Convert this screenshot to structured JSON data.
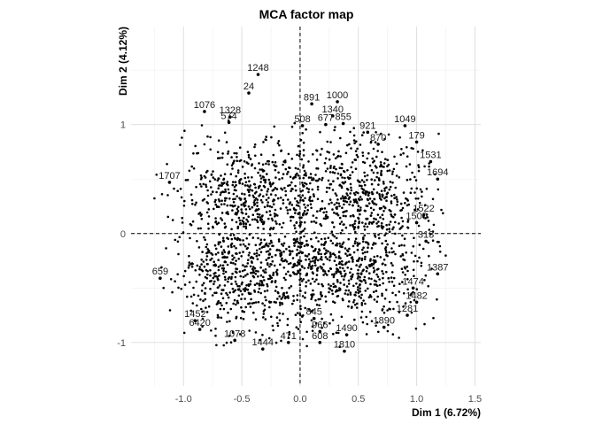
{
  "chart_data": {
    "type": "scatter",
    "title": "MCA factor map",
    "xlabel": "Dim 1 (6.72%)",
    "ylabel": "Dim 2 (4.12%)",
    "xlim": [
      -1.45,
      1.55
    ],
    "ylim": [
      -1.4,
      1.9
    ],
    "xticks": [
      -1.0,
      -0.5,
      0.0,
      0.5,
      1.0,
      1.5
    ],
    "xtick_labels": [
      "-1.0",
      "-0.5",
      "0.0",
      "0.5",
      "1.0",
      "1.5"
    ],
    "yticks": [
      -1,
      0,
      1
    ],
    "ytick_labels": [
      "-1",
      "0",
      "1"
    ],
    "grid": true,
    "reference_lines": {
      "x": 0,
      "y": 0,
      "style": "dashed"
    },
    "point_color": "#000000",
    "labeled_points": [
      {
        "label": "1248",
        "x": -0.36,
        "y": 1.46
      },
      {
        "label": "24",
        "x": -0.44,
        "y": 1.29
      },
      {
        "label": "891",
        "x": 0.1,
        "y": 1.19
      },
      {
        "label": "1000",
        "x": 0.32,
        "y": 1.21
      },
      {
        "label": "1340",
        "x": 0.28,
        "y": 1.08
      },
      {
        "label": "1049",
        "x": 0.9,
        "y": 0.99
      },
      {
        "label": "1076",
        "x": -0.82,
        "y": 1.12
      },
      {
        "label": "1328",
        "x": -0.6,
        "y": 1.07
      },
      {
        "label": "855",
        "x": 0.37,
        "y": 1.01
      },
      {
        "label": "677",
        "x": 0.22,
        "y": 1.0
      },
      {
        "label": "508",
        "x": 0.02,
        "y": 0.99
      },
      {
        "label": "574",
        "x": -0.61,
        "y": 1.02
      },
      {
        "label": "921",
        "x": 0.58,
        "y": 0.93
      },
      {
        "label": "870",
        "x": 0.67,
        "y": 0.82
      },
      {
        "label": "179",
        "x": 1.0,
        "y": 0.84
      },
      {
        "label": "1694",
        "x": 1.18,
        "y": 0.5
      },
      {
        "label": "1531",
        "x": 1.12,
        "y": 0.66
      },
      {
        "label": "1522",
        "x": 1.06,
        "y": 0.17
      },
      {
        "label": "1500",
        "x": 1.0,
        "y": 0.1
      },
      {
        "label": "1707",
        "x": -1.12,
        "y": 0.47
      },
      {
        "label": "659",
        "x": -1.2,
        "y": -0.41
      },
      {
        "label": "1452",
        "x": -0.9,
        "y": -0.8
      },
      {
        "label": "6420",
        "x": -0.86,
        "y": -0.88
      },
      {
        "label": "1078",
        "x": -0.56,
        "y": -0.98
      },
      {
        "label": "1444",
        "x": -0.32,
        "y": -1.06
      },
      {
        "label": "471",
        "x": -0.1,
        "y": -1.0
      },
      {
        "label": "608",
        "x": 0.17,
        "y": -1.0
      },
      {
        "label": "1810",
        "x": 0.38,
        "y": -1.08
      },
      {
        "label": "966",
        "x": 0.17,
        "y": -0.9
      },
      {
        "label": "845",
        "x": 0.12,
        "y": -0.78
      },
      {
        "label": "1281",
        "x": 0.92,
        "y": -0.75
      },
      {
        "label": "1482",
        "x": 1.0,
        "y": -0.63
      },
      {
        "label": "1387",
        "x": 1.18,
        "y": -0.37
      },
      {
        "label": "313",
        "x": 1.08,
        "y": -0.07
      },
      {
        "label": "1474",
        "x": 0.97,
        "y": -0.5
      },
      {
        "label": "1890",
        "x": 0.72,
        "y": -0.86
      },
      {
        "label": "1490",
        "x": 0.4,
        "y": -0.93
      }
    ]
  }
}
